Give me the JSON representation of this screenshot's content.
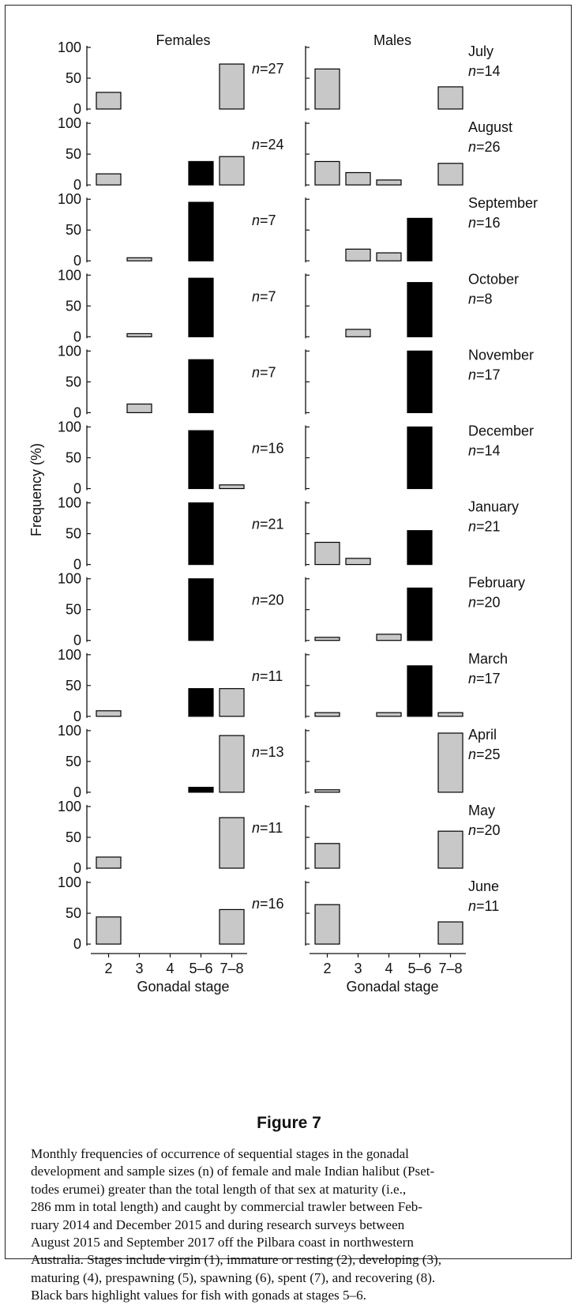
{
  "figure": {
    "title": "Figure 7",
    "caption_lines": [
      "Monthly frequencies of occurrence of sequential stages in the gonadal",
      "development and sample sizes (n) of female and male Indian halibut (Pset-",
      "todes erumei) greater than the total length of that sex at maturity (i.e.,",
      "286 mm in total length) and caught by commercial trawler between Feb-",
      "ruary 2014 and December 2015 and during research surveys between",
      "August 2015 and September 2017 off the Pilbara coast in northwestern",
      "Australia. Stages include virgin (1), immature or resting (2), developing (3),",
      "maturing (4), prespawning (5), spawning (6), spent (7), and recovering (8).",
      "Black bars highlight values for fish with gonads at stages 5–6."
    ]
  },
  "chart_data": {
    "type": "bar",
    "ylabel": "Frequency (%)",
    "xlabel": "Gonadal stage",
    "categories": [
      "2",
      "3",
      "4",
      "5–6",
      "7–8"
    ],
    "ylim": [
      0,
      100
    ],
    "yticks": [
      "0",
      "50",
      "100"
    ],
    "column_titles": [
      "Females",
      "Males"
    ],
    "colors": {
      "highlight": "#000000",
      "default": "#c8c8c8",
      "stroke": "#000000"
    },
    "highlight_category": "5–6",
    "months": [
      {
        "month": "July",
        "female_n": "n=27",
        "male_n": "n=14",
        "female": [
          27,
          0,
          0,
          0,
          73
        ],
        "male": [
          65,
          0,
          0,
          0,
          36
        ]
      },
      {
        "month": "August",
        "female_n": "n=24",
        "male_n": "n=26",
        "female": [
          18,
          0,
          0,
          38,
          46
        ],
        "male": [
          38,
          20,
          8,
          0,
          35
        ]
      },
      {
        "month": "September",
        "female_n": "n=7",
        "male_n": "n=16",
        "female": [
          0,
          5,
          0,
          95,
          0
        ],
        "male": [
          0,
          19,
          13,
          69,
          0
        ]
      },
      {
        "month": "October",
        "female_n": "n=7",
        "male_n": "n=8",
        "female": [
          0,
          5,
          0,
          95,
          0
        ],
        "male": [
          0,
          12,
          0,
          88,
          0
        ]
      },
      {
        "month": "November",
        "female_n": "n=7",
        "male_n": "n=17",
        "female": [
          0,
          14,
          0,
          86,
          0
        ],
        "male": [
          0,
          0,
          0,
          100,
          0
        ]
      },
      {
        "month": "December",
        "female_n": "n=16",
        "male_n": "n=14",
        "female": [
          0,
          0,
          0,
          94,
          6
        ],
        "male": [
          0,
          0,
          0,
          100,
          0
        ]
      },
      {
        "month": "January",
        "female_n": "n=21",
        "male_n": "n=21",
        "female": [
          0,
          0,
          0,
          100,
          0
        ],
        "male": [
          36,
          10,
          0,
          55,
          0
        ]
      },
      {
        "month": "February",
        "female_n": "n=20",
        "male_n": "n=20",
        "female": [
          0,
          0,
          0,
          100,
          0
        ],
        "male": [
          5,
          0,
          10,
          85,
          0
        ]
      },
      {
        "month": "March",
        "female_n": "n=11",
        "male_n": "n=17",
        "female": [
          9,
          0,
          0,
          45,
          45
        ],
        "male": [
          6,
          0,
          6,
          82,
          6
        ]
      },
      {
        "month": "April",
        "female_n": "n=13",
        "male_n": "n=25",
        "female": [
          0,
          0,
          0,
          8,
          92
        ],
        "male": [
          4,
          0,
          0,
          0,
          96
        ]
      },
      {
        "month": "May",
        "female_n": "n=11",
        "male_n": "n=20",
        "female": [
          18,
          0,
          0,
          0,
          82
        ],
        "male": [
          40,
          0,
          0,
          0,
          60
        ]
      },
      {
        "month": "June",
        "female_n": "n=16",
        "male_n": "n=11",
        "female": [
          44,
          0,
          0,
          0,
          56
        ],
        "male": [
          64,
          0,
          0,
          0,
          36
        ]
      }
    ]
  }
}
